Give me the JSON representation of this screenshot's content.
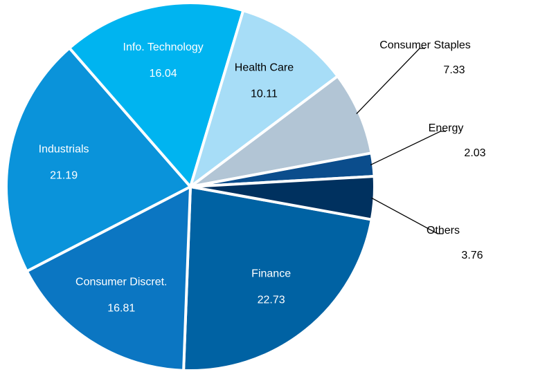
{
  "chart_data": {
    "type": "pie",
    "categories": [
      "Finance",
      "Consumer Discret.",
      "Industrials",
      "Info. Technology",
      "Health Care",
      "Consumer Staples",
      "Energy",
      "Others"
    ],
    "values": [
      22.73,
      16.81,
      21.19,
      16.04,
      10.11,
      7.33,
      2.03,
      3.76
    ],
    "colors": [
      "#0062a3",
      "#0b76c2",
      "#0a93da",
      "#00b4f0",
      "#a7ddf7",
      "#b2c5d5",
      "#0b4d8c",
      "#00315f"
    ]
  }
}
